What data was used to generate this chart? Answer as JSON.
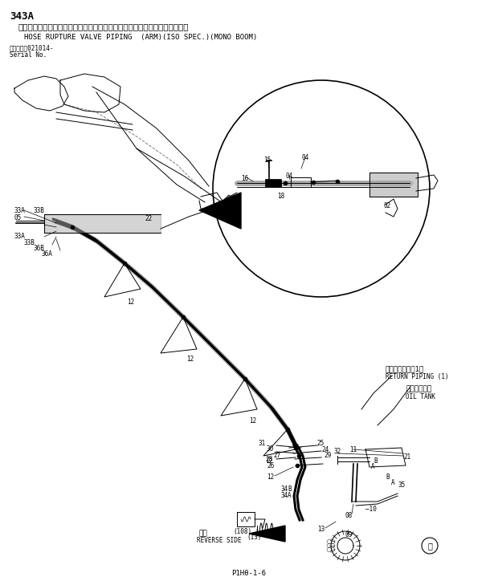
{
  "title_num": "343A",
  "title_jp": "ホースラプチャーバルブ配管（アーム）　（ＩＳＯ仕様）　（モノブーム）",
  "title_en": "HOSE RUPTURE VALVE PIPING  (ARM)(ISO SPEC.)(MONO BOOM)",
  "serial_line1": "適用号機　021014-",
  "serial_line2": "Serial No.",
  "page_num": "P1Hθ-1-6",
  "bg_color": "#ffffff",
  "line_color": "#000000",
  "text_color": "#000000",
  "gray_color": "#aaaaaa"
}
